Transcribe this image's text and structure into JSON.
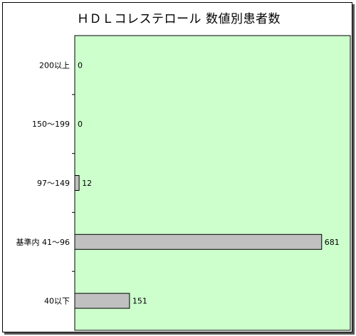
{
  "chart_data": {
    "type": "bar",
    "orientation": "horizontal",
    "title": "ＨＤＬコレステロール 数値別患者数",
    "categories": [
      "200以上",
      "150～199",
      "97～149",
      "基準内 41～96",
      "40以下"
    ],
    "values": [
      0,
      0,
      12,
      681,
      151
    ],
    "xlim": [
      0,
      760
    ],
    "grid": false,
    "legend": "none",
    "colors": {
      "plot_background": "#ccffcc",
      "bar_fill": "#c0c0c0",
      "bar_stroke": "#000000",
      "frame": "#000000"
    }
  }
}
